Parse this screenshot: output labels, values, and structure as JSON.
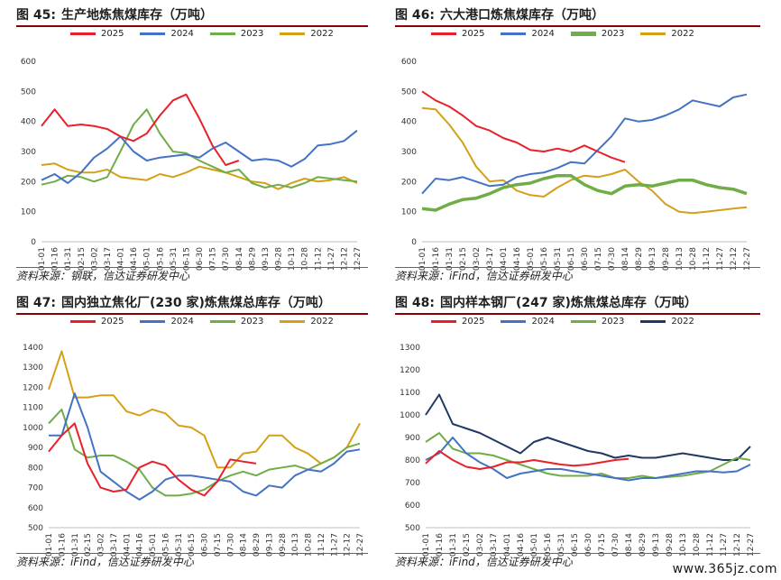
{
  "colors": {
    "2025": "#e8202a",
    "2024": "#4472c4",
    "2023": "#70ad47",
    "2022_gold": "#d4a017",
    "2022_navy": "#1f3864"
  },
  "x_labels": [
    "01-01",
    "01-16",
    "01-31",
    "02-15",
    "03-02",
    "03-17",
    "04-01",
    "04-16",
    "05-01",
    "05-16",
    "05-31",
    "06-15",
    "06-30",
    "07-15",
    "07-30",
    "08-14",
    "08-29",
    "09-13",
    "09-28",
    "10-13",
    "10-28",
    "11-12",
    "11-27",
    "12-12",
    "12-27"
  ],
  "panels": [
    {
      "number": "图 45:",
      "title": "生产地炼焦煤库存（万吨）",
      "source": "资料来源：钢联，信达证券研发中心",
      "chart_data": {
        "type": "line",
        "ylim": [
          0,
          600
        ],
        "yticks": [
          0,
          100,
          200,
          300,
          400,
          500,
          600
        ],
        "series": [
          {
            "name": "2025",
            "color_key": "2025",
            "values": [
              385,
              440,
              385,
              390,
              385,
              375,
              350,
              335,
              360,
              420,
              470,
              490,
              410,
              320,
              255,
              270
            ]
          },
          {
            "name": "2024",
            "color_key": "2024",
            "values": [
              205,
              225,
              195,
              230,
              280,
              310,
              350,
              300,
              270,
              280,
              285,
              290,
              280,
              310,
              330,
              300,
              270,
              275,
              270,
              250,
              275,
              320,
              325,
              335,
              370
            ]
          },
          {
            "name": "2023",
            "color_key": "2023",
            "values": [
              190,
              200,
              220,
              215,
              200,
              215,
              300,
              390,
              440,
              360,
              300,
              295,
              270,
              250,
              230,
              240,
              195,
              180,
              190,
              180,
              195,
              215,
              210,
              205,
              200
            ]
          },
          {
            "name": "2022",
            "color_key": "2022_gold",
            "values": [
              255,
              260,
              240,
              230,
              230,
              240,
              215,
              210,
              205,
              225,
              215,
              230,
              250,
              240,
              230,
              215,
              200,
              195,
              175,
              195,
              210,
              200,
              205,
              215,
              195
            ]
          }
        ]
      }
    },
    {
      "number": "图 46:",
      "title": "六大港口炼焦煤库存（万吨）",
      "source": "资料来源：iFind，信达证券研发中心",
      "chart_data": {
        "type": "line",
        "ylim": [
          0,
          600
        ],
        "yticks": [
          0,
          100,
          200,
          300,
          400,
          500,
          600
        ],
        "series": [
          {
            "name": "2025",
            "color_key": "2025",
            "values": [
              500,
              470,
              450,
              420,
              385,
              370,
              345,
              330,
              305,
              300,
              310,
              300,
              320,
              300,
              280,
              265
            ]
          },
          {
            "name": "2024",
            "color_key": "2024",
            "values": [
              160,
              210,
              205,
              215,
              200,
              185,
              190,
              215,
              225,
              230,
              245,
              265,
              260,
              305,
              350,
              410,
              400,
              405,
              420,
              440,
              470,
              460,
              450,
              480,
              490
            ]
          },
          {
            "name": "2023",
            "color_key": "2023",
            "values": [
              110,
              105,
              125,
              140,
              145,
              160,
              180,
              190,
              195,
              210,
              220,
              220,
              190,
              170,
              160,
              185,
              190,
              185,
              195,
              205,
              205,
              190,
              180,
              175,
              160
            ]
          },
          {
            "name": "2022",
            "color_key": "2022_gold",
            "values": [
              445,
              440,
              390,
              330,
              250,
              200,
              205,
              170,
              155,
              150,
              180,
              205,
              220,
              215,
              225,
              240,
              200,
              170,
              125,
              100,
              95,
              100,
              105,
              110,
              115
            ]
          }
        ]
      }
    },
    {
      "number": "图 47:",
      "title": "国内独立焦化厂(230 家)炼焦煤总库存（万吨）",
      "source": "资料来源：iFind，信达证券研发中心",
      "chart_data": {
        "type": "line",
        "ylim": [
          500,
          1400
        ],
        "yticks": [
          500,
          600,
          700,
          800,
          900,
          1000,
          1100,
          1200,
          1300,
          1400
        ],
        "series": [
          {
            "name": "2025",
            "color_key": "2025",
            "values": [
              880,
              960,
              1020,
              820,
              700,
              680,
              690,
              800,
              830,
              810,
              740,
              690,
              660,
              730,
              840,
              830,
              820
            ]
          },
          {
            "name": "2024",
            "color_key": "2024",
            "values": [
              960,
              960,
              1170,
              1000,
              780,
              730,
              680,
              640,
              680,
              740,
              760,
              760,
              750,
              740,
              730,
              680,
              660,
              710,
              700,
              760,
              790,
              780,
              820,
              880,
              890
            ]
          },
          {
            "name": "2023",
            "color_key": "2023",
            "values": [
              1020,
              1090,
              890,
              850,
              860,
              860,
              830,
              790,
              700,
              660,
              660,
              670,
              690,
              730,
              760,
              780,
              760,
              790,
              800,
              810,
              790,
              820,
              850,
              900,
              920
            ]
          },
          {
            "name": "2022",
            "color_key": "2022_gold",
            "values": [
              1190,
              1380,
              1150,
              1150,
              1160,
              1160,
              1080,
              1060,
              1090,
              1070,
              1010,
              1000,
              960,
              800,
              800,
              870,
              880,
              960,
              960,
              900,
              870,
              820,
              850,
              900,
              1020
            ]
          }
        ]
      }
    },
    {
      "number": "图 48:",
      "title": "国内样本钢厂(247 家)炼焦煤总库存（万吨）",
      "source": "资料来源：iFind，信达证券研发中心",
      "chart_data": {
        "type": "line",
        "ylim": [
          500,
          1300
        ],
        "yticks": [
          500,
          600,
          700,
          800,
          900,
          1000,
          1100,
          1200,
          1300
        ],
        "series": [
          {
            "name": "2025",
            "color_key": "2025",
            "values": [
              785,
              840,
              800,
              770,
              760,
              770,
              790,
              790,
              800,
              790,
              780,
              775,
              780,
              790,
              800,
              805
            ]
          },
          {
            "name": "2024",
            "color_key": "2024",
            "values": [
              800,
              830,
              900,
              830,
              790,
              760,
              720,
              740,
              750,
              760,
              760,
              750,
              740,
              730,
              720,
              710,
              720,
              720,
              730,
              740,
              750,
              750,
              745,
              750,
              780
            ]
          },
          {
            "name": "2023",
            "color_key": "2023",
            "values": [
              880,
              920,
              850,
              830,
              830,
              820,
              800,
              780,
              760,
              740,
              730,
              730,
              730,
              740,
              720,
              720,
              730,
              720,
              725,
              730,
              740,
              750,
              780,
              810,
              800
            ]
          },
          {
            "name": "2022",
            "color_key": "2022_navy",
            "values": [
              1000,
              1090,
              960,
              940,
              920,
              890,
              860,
              830,
              880,
              900,
              880,
              860,
              840,
              830,
              810,
              820,
              810,
              810,
              820,
              830,
              820,
              810,
              800,
              800,
              860
            ]
          }
        ]
      }
    }
  ],
  "watermark": "www.365jz.com"
}
